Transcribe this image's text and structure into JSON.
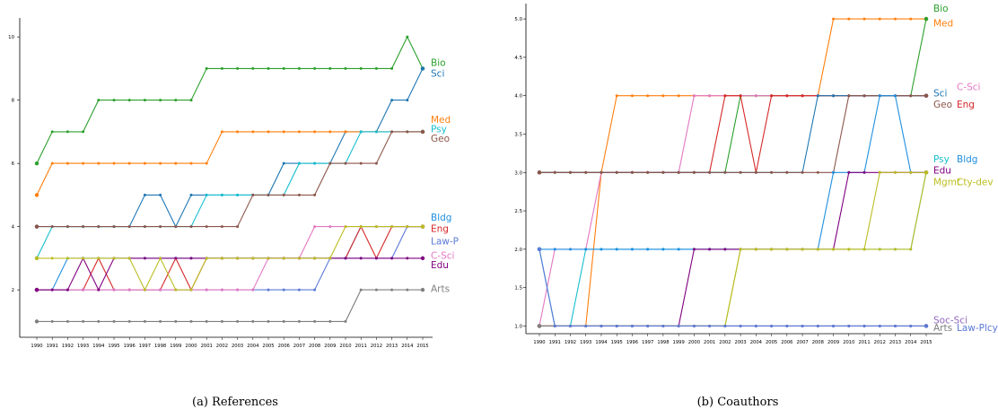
{
  "colors": {
    "Bio": "#2ca02c",
    "Sci": "#1f77b4",
    "Med": "#ff7f0e",
    "Psy": "#17becf",
    "Geo": "#8c564b",
    "Bldg": "#1f8fe0",
    "Eng": "#d62728",
    "Law-P": "#5b79d6",
    "C-Sci": "#e377c2",
    "Edu": "#800080",
    "Arts": "#7f7f7f",
    "Mgmt": "#bcbd22",
    "Cty-dev": "#bcbd22",
    "Soc-Sci": "#9467bd",
    "Law-Plcy": "#5b79d6"
  },
  "chart_data": [
    {
      "type": "line",
      "caption": "(a) References",
      "x": [
        1990,
        1991,
        1992,
        1993,
        1994,
        1995,
        1996,
        1997,
        1998,
        1999,
        2000,
        2001,
        2002,
        2003,
        2004,
        2005,
        2006,
        2007,
        2008,
        2009,
        2010,
        2011,
        2012,
        2013,
        2014,
        2015
      ],
      "ylim": [
        0.5,
        10.6
      ],
      "yticks": [
        2,
        4,
        6,
        8,
        10
      ],
      "series": [
        {
          "name": "Bio",
          "values": [
            6,
            7,
            7,
            7,
            8,
            8,
            8,
            8,
            8,
            8,
            8,
            9,
            9,
            9,
            9,
            9,
            9,
            9,
            9,
            9,
            9,
            9,
            9,
            9,
            10,
            9
          ]
        },
        {
          "name": "Sci",
          "values": [
            4,
            4,
            4,
            4,
            4,
            4,
            4,
            5,
            5,
            4,
            5,
            5,
            5,
            5,
            5,
            5,
            6,
            6,
            6,
            6,
            7,
            7,
            7,
            8,
            8,
            9
          ]
        },
        {
          "name": "Med",
          "values": [
            5,
            6,
            6,
            6,
            6,
            6,
            6,
            6,
            6,
            6,
            6,
            6,
            7,
            7,
            7,
            7,
            7,
            7,
            7,
            7,
            7,
            7,
            7,
            7,
            7,
            7
          ]
        },
        {
          "name": "Psy",
          "values": [
            3,
            4,
            4,
            4,
            4,
            4,
            4,
            4,
            4,
            4,
            4,
            5,
            5,
            5,
            5,
            5,
            5,
            6,
            6,
            6,
            6,
            7,
            7,
            7,
            7,
            7
          ]
        },
        {
          "name": "Geo",
          "values": [
            4,
            4,
            4,
            4,
            4,
            4,
            4,
            4,
            4,
            4,
            4,
            4,
            4,
            4,
            5,
            5,
            5,
            5,
            5,
            6,
            6,
            6,
            6,
            7,
            7,
            7
          ]
        },
        {
          "name": "Bldg",
          "values": [
            2,
            2,
            3,
            3,
            3,
            3,
            3,
            3,
            3,
            3,
            3,
            3,
            3,
            3,
            3,
            3,
            3,
            3,
            3,
            3,
            3,
            4,
            4,
            4,
            4,
            4
          ]
        },
        {
          "name": "Eng",
          "values": [
            2,
            2,
            2,
            2,
            3,
            2,
            2,
            2,
            2,
            3,
            2,
            3,
            3,
            3,
            3,
            3,
            3,
            3,
            3,
            3,
            3,
            4,
            3,
            4,
            4,
            4
          ]
        },
        {
          "name": "Law-P",
          "values": [
            2,
            2,
            2,
            2,
            2,
            2,
            2,
            2,
            2,
            2,
            2,
            2,
            2,
            2,
            2,
            2,
            2,
            2,
            2,
            3,
            3,
            3,
            3,
            3,
            4,
            4
          ]
        },
        {
          "name": "C-Sci",
          "values": [
            2,
            2,
            2,
            2,
            2,
            2,
            2,
            2,
            2,
            2,
            2,
            2,
            2,
            2,
            2,
            3,
            3,
            3,
            4,
            4,
            4,
            4,
            4,
            4,
            4,
            4
          ]
        },
        {
          "name": "Edu",
          "values": [
            2,
            2,
            2,
            3,
            2,
            3,
            3,
            3,
            3,
            3,
            3,
            3,
            3,
            3,
            3,
            3,
            3,
            3,
            3,
            3,
            3,
            3,
            3,
            3,
            3,
            3
          ]
        },
        {
          "name": "Arts",
          "values": [
            1,
            1,
            1,
            1,
            1,
            1,
            1,
            1,
            1,
            1,
            1,
            1,
            1,
            1,
            1,
            1,
            1,
            1,
            1,
            1,
            1,
            2,
            2,
            2,
            2,
            2
          ]
        },
        {
          "name": "",
          "values": [
            3,
            3,
            3,
            3,
            3,
            3,
            3,
            2,
            3,
            2,
            2,
            3,
            3,
            3,
            3,
            3,
            3,
            3,
            3,
            3,
            4,
            4,
            4,
            4,
            4,
            4
          ]
        }
      ],
      "end_labels": [
        {
          "text": "Bio",
          "color_key": "Bio",
          "col": 0,
          "value": 9.2
        },
        {
          "text": "Sci",
          "color_key": "Sci",
          "col": 0,
          "value": 8.85
        },
        {
          "text": "Med",
          "color_key": "Med",
          "col": 0,
          "value": 7.4
        },
        {
          "text": "Psy",
          "color_key": "Psy",
          "col": 0,
          "value": 7.1
        },
        {
          "text": "Geo",
          "color_key": "Geo",
          "col": 0,
          "value": 6.8
        },
        {
          "text": "Bldg",
          "color_key": "Bldg",
          "col": 0,
          "value": 4.3
        },
        {
          "text": "Eng",
          "color_key": "Eng",
          "col": 0,
          "value": 3.95
        },
        {
          "text": "Law-P",
          "color_key": "Law-P",
          "col": 0,
          "value": 3.55
        },
        {
          "text": "C-Sci",
          "color_key": "C-Sci",
          "col": 0,
          "value": 3.1
        },
        {
          "text": "Edu",
          "color_key": "Edu",
          "col": 0,
          "value": 2.8
        },
        {
          "text": "Arts",
          "color_key": "Arts",
          "col": 0,
          "value": 2.05
        }
      ]
    },
    {
      "type": "line",
      "caption": "(b) Coauthors",
      "x": [
        1990,
        1991,
        1992,
        1993,
        1994,
        1995,
        1996,
        1997,
        1998,
        1999,
        2000,
        2001,
        2002,
        2003,
        2004,
        2005,
        2006,
        2007,
        2008,
        2009,
        2010,
        2011,
        2012,
        2013,
        2014,
        2015
      ],
      "ylim": [
        0.9,
        5.2
      ],
      "yticks": [
        1.0,
        1.5,
        2.0,
        2.5,
        3.0,
        3.5,
        4.0,
        4.5,
        5.0
      ],
      "series": [
        {
          "name": "Med",
          "values": [
            1,
            1,
            1,
            1,
            3,
            4,
            4,
            4,
            4,
            4,
            4,
            4,
            4,
            4,
            4,
            4,
            4,
            4,
            4,
            5,
            5,
            5,
            5,
            5,
            5,
            5
          ]
        },
        {
          "name": "Bio",
          "values": [
            3,
            3,
            3,
            3,
            3,
            3,
            3,
            3,
            3,
            3,
            3,
            3,
            3,
            4,
            4,
            4,
            4,
            4,
            4,
            4,
            4,
            4,
            4,
            4,
            4,
            5
          ]
        },
        {
          "name": "C-Sci",
          "values": [
            1,
            2,
            2,
            2,
            3,
            3,
            3,
            3,
            3,
            3,
            4,
            4,
            4,
            4,
            4,
            4,
            4,
            4,
            4,
            4,
            4,
            4,
            4,
            4,
            4,
            4
          ]
        },
        {
          "name": "Eng",
          "values": [
            3,
            3,
            3,
            3,
            3,
            3,
            3,
            3,
            3,
            3,
            3,
            3,
            4,
            4,
            3,
            4,
            4,
            4,
            4,
            4,
            4,
            4,
            4,
            4,
            4,
            4
          ]
        },
        {
          "name": "Sci",
          "values": [
            3,
            3,
            3,
            3,
            3,
            3,
            3,
            3,
            3,
            3,
            3,
            3,
            3,
            3,
            3,
            3,
            3,
            3,
            4,
            4,
            4,
            4,
            4,
            4,
            4,
            4
          ]
        },
        {
          "name": "Geo",
          "values": [
            3,
            3,
            3,
            3,
            3,
            3,
            3,
            3,
            3,
            3,
            3,
            3,
            3,
            3,
            3,
            3,
            3,
            3,
            3,
            3,
            4,
            4,
            4,
            4,
            4,
            4
          ]
        },
        {
          "name": "Psy",
          "values": [
            2,
            1,
            1,
            2,
            2,
            2,
            2,
            2,
            2,
            2,
            2,
            2,
            2,
            2,
            2,
            2,
            2,
            2,
            2,
            2,
            2,
            2,
            2,
            2,
            2,
            3
          ]
        },
        {
          "name": "Bldg",
          "values": [
            2,
            2,
            2,
            2,
            2,
            2,
            2,
            2,
            2,
            2,
            2,
            2,
            2,
            2,
            2,
            2,
            2,
            2,
            2,
            3,
            3,
            3,
            4,
            4,
            3,
            3
          ]
        },
        {
          "name": "Edu",
          "values": [
            1,
            1,
            1,
            1,
            1,
            1,
            1,
            1,
            1,
            1,
            2,
            2,
            2,
            2,
            2,
            2,
            2,
            2,
            2,
            2,
            3,
            3,
            3,
            3,
            3,
            3
          ]
        },
        {
          "name": "Mgmt",
          "values": [
            1,
            1,
            1,
            1,
            1,
            1,
            1,
            1,
            1,
            1,
            1,
            1,
            1,
            2,
            2,
            2,
            2,
            2,
            2,
            2,
            2,
            2,
            3,
            3,
            3,
            3
          ]
        },
        {
          "name": "Cty-dev",
          "values": [
            1,
            1,
            1,
            1,
            1,
            1,
            1,
            1,
            1,
            1,
            1,
            1,
            1,
            2,
            2,
            2,
            2,
            2,
            2,
            2,
            2,
            2,
            2,
            2,
            2,
            3
          ]
        },
        {
          "name": "Soc-Sci",
          "values": [
            1,
            1,
            1,
            1,
            1,
            1,
            1,
            1,
            1,
            1,
            1,
            1,
            1,
            1,
            1,
            1,
            1,
            1,
            1,
            1,
            1,
            1,
            1,
            1,
            1,
            1
          ]
        },
        {
          "name": "Arts",
          "values": [
            1,
            1,
            1,
            1,
            1,
            1,
            1,
            1,
            1,
            1,
            1,
            1,
            1,
            1,
            1,
            1,
            1,
            1,
            1,
            1,
            1,
            1,
            1,
            1,
            1,
            1
          ]
        },
        {
          "name": "Law-Plcy",
          "values": [
            2,
            1,
            1,
            1,
            1,
            1,
            1,
            1,
            1,
            1,
            1,
            1,
            1,
            1,
            1,
            1,
            1,
            1,
            1,
            1,
            1,
            1,
            1,
            1,
            1,
            1
          ]
        }
      ],
      "end_labels": [
        {
          "text": "Bio",
          "color_key": "Bio",
          "col": 0,
          "value": 5.14
        },
        {
          "text": "Med",
          "color_key": "Med",
          "col": 0,
          "value": 4.95
        },
        {
          "text": "Sci",
          "color_key": "Sci",
          "col": 0,
          "value": 4.04
        },
        {
          "text": "C-Sci",
          "color_key": "C-Sci",
          "col": 1,
          "value": 4.12
        },
        {
          "text": "Geo",
          "color_key": "Geo",
          "col": 0,
          "value": 3.89
        },
        {
          "text": "Eng",
          "color_key": "Eng",
          "col": 1,
          "value": 3.89
        },
        {
          "text": "Psy",
          "color_key": "Psy",
          "col": 0,
          "value": 3.18
        },
        {
          "text": "Bldg",
          "color_key": "Bldg",
          "col": 1,
          "value": 3.18
        },
        {
          "text": "Edu",
          "color_key": "Edu",
          "col": 0,
          "value": 3.03
        },
        {
          "text": "Mgmt",
          "color_key": "Mgmt",
          "col": 0,
          "value": 2.88
        },
        {
          "text": "Cty-dev",
          "color_key": "Cty-dev",
          "col": 1,
          "value": 2.88
        },
        {
          "text": "Soc-Sci",
          "color_key": "Soc-Sci",
          "col": 0,
          "value": 1.08
        },
        {
          "text": "Arts",
          "color_key": "Arts",
          "col": 0,
          "value": 0.98
        },
        {
          "text": "Law-Plcy",
          "color_key": "Law-Plcy",
          "col": 1,
          "value": 0.98
        }
      ]
    }
  ]
}
